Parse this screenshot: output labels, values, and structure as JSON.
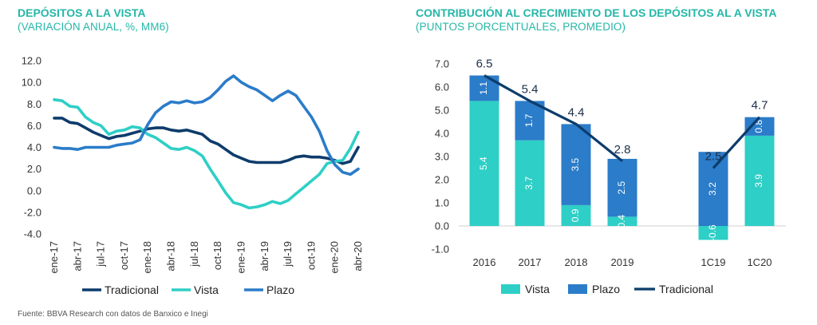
{
  "left": {
    "title": "DEPÓSITOS A LA VISTA",
    "subtitle": "(VARIACIÓN ANUAL, %, MM6)"
  },
  "right": {
    "title": "CONTRIBUCIÓN AL CRECIMIENTO DE LOS DEPÓSITOS AL A VISTA",
    "subtitle": "(PUNTOS PORCENTUALES, PROMEDIO)"
  },
  "source": "Fuente: BBVA Research con datos de Banxico e Inegi",
  "colors": {
    "tradicional": "#0d3c6b",
    "vista": "#2ecfc6",
    "plazo": "#2b7cc9",
    "title": "#25b7a8"
  },
  "chart_data": [
    {
      "type": "line",
      "title": "DEPÓSITOS A LA VISTA",
      "subtitle": "(VARIACIÓN ANUAL, %, MM6)",
      "tick_labels": [
        "ene-17",
        "abr-17",
        "jul-17",
        "oct-17",
        "ene-18",
        "abr-18",
        "jul-18",
        "oct-18",
        "ene-19",
        "abr-19",
        "jul-19",
        "oct-19",
        "ene-20",
        "abr-20"
      ],
      "y_ticks": [
        "12.0",
        "10.0",
        "8.0",
        "6.0",
        "4.0",
        "2.0",
        "0.0",
        "-2.0",
        "-4.0"
      ],
      "ylim": [
        -4,
        12
      ],
      "legend": "bottom",
      "grid": false,
      "series": [
        {
          "name": "Tradicional",
          "values": [
            6.7,
            6.7,
            6.3,
            6.2,
            5.8,
            5.4,
            5.1,
            4.8,
            5.0,
            5.1,
            5.3,
            5.5,
            5.7,
            5.8,
            5.8,
            5.6,
            5.5,
            5.6,
            5.4,
            5.2,
            4.6,
            4.3,
            3.8,
            3.3,
            3.0,
            2.7,
            2.6,
            2.6,
            2.6,
            2.6,
            2.8,
            3.1,
            3.2,
            3.1,
            3.1,
            3.0,
            2.8,
            2.5,
            2.7,
            4.0
          ]
        },
        {
          "name": "Vista",
          "values": [
            8.4,
            8.3,
            7.8,
            7.7,
            6.8,
            6.3,
            6.0,
            5.2,
            5.5,
            5.6,
            5.9,
            5.8,
            5.2,
            4.9,
            4.4,
            3.9,
            3.8,
            4.0,
            3.7,
            3.2,
            2.0,
            0.9,
            -0.2,
            -1.1,
            -1.3,
            -1.6,
            -1.5,
            -1.3,
            -1.0,
            -1.2,
            -0.9,
            -0.3,
            0.3,
            0.9,
            1.5,
            2.5,
            2.7,
            2.8,
            3.9,
            5.4
          ]
        },
        {
          "name": "Plazo",
          "values": [
            4.0,
            3.9,
            3.9,
            3.8,
            4.0,
            4.0,
            4.0,
            4.0,
            4.2,
            4.3,
            4.4,
            4.7,
            6.1,
            7.2,
            7.8,
            8.2,
            8.1,
            8.3,
            8.1,
            8.2,
            8.6,
            9.3,
            10.1,
            10.6,
            10.0,
            9.6,
            9.3,
            8.8,
            8.3,
            8.8,
            9.2,
            8.8,
            7.8,
            6.8,
            5.5,
            3.7,
            2.4,
            1.7,
            1.5,
            2.0
          ]
        }
      ]
    },
    {
      "type": "bar",
      "title": "CONTRIBUCIÓN AL CRECIMIENTO DE LOS DEPÓSITOS AL A VISTA",
      "subtitle": "(PUNTOS PORCENTUALES, PROMEDIO)",
      "categories": [
        "2016",
        "2017",
        "2018",
        "2019",
        "1C19",
        "1C20"
      ],
      "y_ticks": [
        "7.0",
        "6.0",
        "5.0",
        "4.0",
        "3.0",
        "2.0",
        "1.0",
        "0.0",
        "-1.0"
      ],
      "ylim": [
        -1,
        7
      ],
      "stacked": true,
      "legend": "bottom",
      "grid": false,
      "series": [
        {
          "name": "Vista",
          "values": [
            5.4,
            3.7,
            0.9,
            0.4,
            -0.6,
            3.9
          ],
          "labels": [
            "5.4",
            "3.7",
            "0.9",
            "0.4",
            "-0.6",
            "3.9"
          ]
        },
        {
          "name": "Plazo",
          "values": [
            1.1,
            1.7,
            3.5,
            2.5,
            3.2,
            0.8
          ],
          "labels": [
            "1.1",
            "1.7",
            "3.5",
            "2.5",
            "3.2",
            "0.8"
          ]
        },
        {
          "name": "Tradicional",
          "type": "line",
          "values": [
            6.5,
            5.4,
            4.4,
            2.8,
            2.5,
            4.7
          ],
          "labels": [
            "6.5",
            "5.4",
            "4.4",
            "2.8",
            "2.5",
            "4.7"
          ]
        }
      ]
    }
  ]
}
